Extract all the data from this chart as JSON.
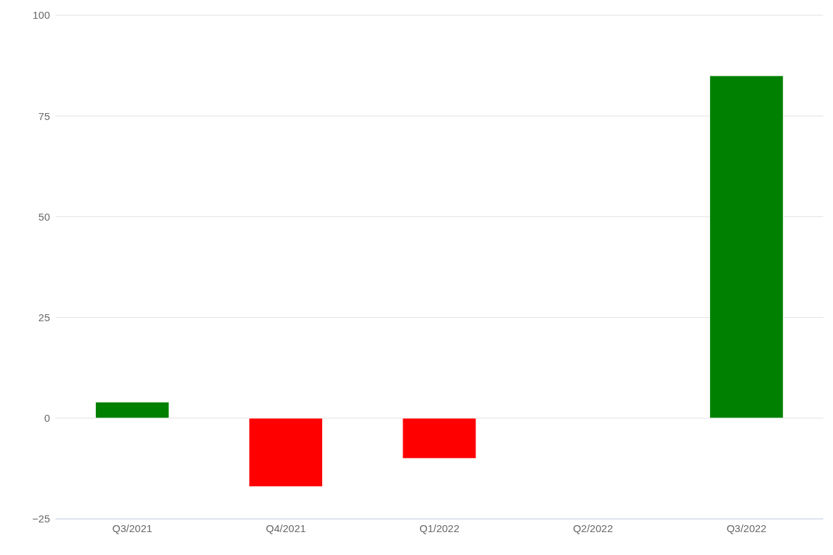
{
  "chart_data": {
    "type": "bar",
    "categories": [
      "Q3/2021",
      "Q4/2021",
      "Q1/2022",
      "Q2/2022",
      "Q3/2022"
    ],
    "values": [
      4,
      -17,
      -10,
      0,
      85
    ],
    "colors": [
      "#008000",
      "#ff0000",
      "#ff0000",
      "#008000",
      "#008000"
    ],
    "ylim": [
      -25,
      100
    ],
    "yticks": [
      -25,
      0,
      25,
      50,
      75,
      100
    ],
    "grid": "y"
  }
}
